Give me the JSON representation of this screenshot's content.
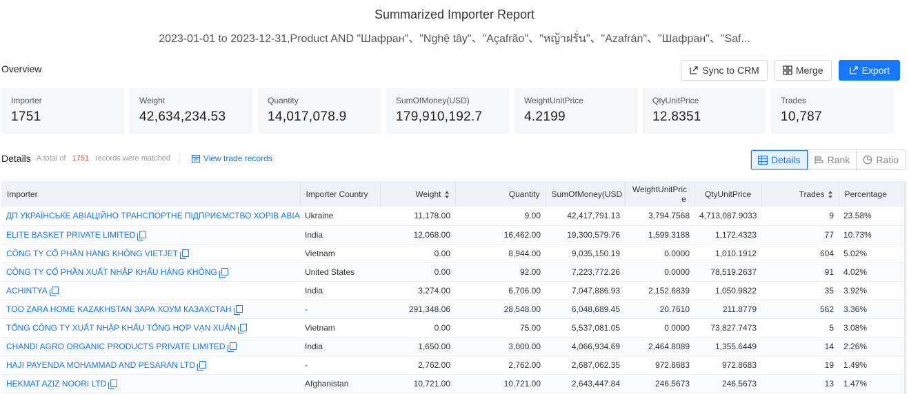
{
  "header": {
    "title": "Summarized Importer Report",
    "subtitle": "2023-01-01 to 2023-12-31,Product AND \"Шафран\"、\"Nghệ tây\"、\"Açafrão\"、\"หญ้าฝรั่น\"、\"Azafrán\"、\"Шафран\"、\"Saf..."
  },
  "overview": {
    "label": "Overview",
    "actions": {
      "sync": "Sync to CRM",
      "merge": "Merge",
      "export": "Export"
    },
    "cards": [
      {
        "label": "Importer",
        "value": "1751"
      },
      {
        "label": "Weight",
        "value": "42,634,234.53"
      },
      {
        "label": "Quantity",
        "value": "14,017,078.9"
      },
      {
        "label": "SumOfMoney(USD)",
        "value": "179,910,192.7"
      },
      {
        "label": "WeightUnitPrice",
        "value": "4.2199"
      },
      {
        "label": "QtyUnitPrice",
        "value": "12.8351"
      },
      {
        "label": "Trades",
        "value": "10,787"
      }
    ]
  },
  "details": {
    "label": "Details",
    "total_prefix": "A total of",
    "total_count": "1751",
    "total_suffix": "records were matched",
    "view_link": "View trade records",
    "views": {
      "details": "Details",
      "rank": "Rank",
      "ratio": "Ratio"
    }
  },
  "table": {
    "columns": {
      "importer": "Importer",
      "country": "Importer Country",
      "weight": "Weight",
      "quantity": "Quantity",
      "sum": "SumOfMoney(USD",
      "wup_1": "WeightUnitPric",
      "wup_2": "e",
      "qup": "QtyUnitPrice",
      "trades": "Trades",
      "percentage": "Percentage"
    },
    "rows": [
      {
        "importer": "ДП УКРАЇНСЬКЕ АВІАЦІЙНО ТРАНСПОРТНЕ ПІДПРИЄМСТВО ХОРІВ АВІА",
        "country": "Ukraine",
        "weight": "11,178.00",
        "quantity": "9.00",
        "sum": "42,417,791.13",
        "wup": "3,794.7568",
        "qup": "4,713,087.9033",
        "trades": "9",
        "pct": "23.58%"
      },
      {
        "importer": "ELITE BASKET PRIVATE LIMITED",
        "country": "India",
        "weight": "12,068.00",
        "quantity": "16,462.00",
        "sum": "19,300,579.76",
        "wup": "1,599.3188",
        "qup": "1,172.4323",
        "trades": "77",
        "pct": "10.73%"
      },
      {
        "importer": "CÔNG TY CỔ PHẦN HÀNG KHÔNG VIETJET",
        "country": "Vietnam",
        "weight": "0.00",
        "quantity": "8,944.00",
        "sum": "9,035,150.19",
        "wup": "0.0000",
        "qup": "1,010.1912",
        "trades": "604",
        "pct": "5.02%"
      },
      {
        "importer": "CÔNG TY CỔ PHẦN XUẤT NHẬP KHẨU HÀNG KHÔNG",
        "country": "United States",
        "weight": "0.00",
        "quantity": "92.00",
        "sum": "7,223,772.26",
        "wup": "0.0000",
        "qup": "78,519.2637",
        "trades": "91",
        "pct": "4.02%"
      },
      {
        "importer": "ACHINTYA",
        "country": "India",
        "weight": "3,274.00",
        "quantity": "6,706.00",
        "sum": "7,047,886.93",
        "wup": "2,152.6839",
        "qup": "1,050.9822",
        "trades": "35",
        "pct": "3.92%"
      },
      {
        "importer": "TOO ZARA HOME KAZAKHSTAN ЗАРА ХОУМ КАЗАХСТАН",
        "country": "-",
        "weight": "291,348.06",
        "quantity": "28,548.00",
        "sum": "6,048,689.45",
        "wup": "20.7610",
        "qup": "211.8779",
        "trades": "562",
        "pct": "3.36%"
      },
      {
        "importer": "TỔNG CÔNG TY XUẤT NHẬP KHẨU TỔNG HỢP VẠN XUÂN",
        "country": "Vietnam",
        "weight": "0.00",
        "quantity": "75.00",
        "sum": "5,537,081.05",
        "wup": "0.0000",
        "qup": "73,827.7473",
        "trades": "5",
        "pct": "3.08%"
      },
      {
        "importer": "CHANDI AGRO ORGANIC PRODUCTS PRIVATE LIMITED",
        "country": "India",
        "weight": "1,650.00",
        "quantity": "3,000.00",
        "sum": "4,066,934.69",
        "wup": "2,464.8089",
        "qup": "1,355.6449",
        "trades": "14",
        "pct": "2.26%"
      },
      {
        "importer": "HAJI PAYENDA MOHAMMAD AND PESARAN LTD",
        "country": "-",
        "weight": "2,762.00",
        "quantity": "2,762.00",
        "sum": "2,687,062.35",
        "wup": "972.8683",
        "qup": "972.8683",
        "trades": "19",
        "pct": "1.49%"
      },
      {
        "importer": "HEKMAT AZIZ NOORI LTD",
        "country": "Afghanistan",
        "weight": "10,721.00",
        "quantity": "10,721.00",
        "sum": "2,643,447.84",
        "wup": "246.5673",
        "qup": "246.5673",
        "trades": "13",
        "pct": "1.47%"
      }
    ]
  }
}
